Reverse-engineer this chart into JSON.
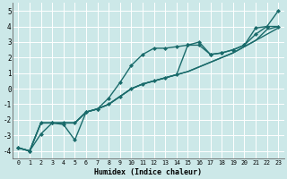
{
  "xlabel": "Humidex (Indice chaleur)",
  "ylabel": "",
  "background_color": "#cce8e8",
  "grid_color": "#ffffff",
  "line_color": "#1a6b6b",
  "xlim": [
    -0.5,
    23.5
  ],
  "ylim": [
    -4.5,
    5.5
  ],
  "xticks": [
    0,
    1,
    2,
    3,
    4,
    5,
    6,
    7,
    8,
    9,
    10,
    11,
    12,
    13,
    14,
    15,
    16,
    17,
    18,
    19,
    20,
    21,
    22,
    23
  ],
  "yticks": [
    -4,
    -3,
    -2,
    -1,
    0,
    1,
    2,
    3,
    4,
    5
  ],
  "series": [
    {
      "x": [
        0,
        1,
        2,
        3,
        4,
        5,
        6,
        7,
        8,
        9,
        10,
        11,
        12,
        13,
        14,
        15,
        16,
        17,
        18,
        19,
        20,
        21,
        22,
        23
      ],
      "y": [
        -3.8,
        -4.0,
        -2.9,
        -2.2,
        -2.3,
        -3.3,
        -1.5,
        -1.3,
        -0.6,
        0.4,
        1.5,
        2.2,
        2.6,
        2.6,
        2.7,
        2.8,
        3.0,
        2.2,
        2.3,
        2.5,
        2.8,
        3.9,
        4.0,
        5.0
      ],
      "marker": "D",
      "markersize": 2.0,
      "linewidth": 1.0
    },
    {
      "x": [
        0,
        1,
        2,
        3,
        4,
        5,
        6,
        7,
        8,
        9,
        10,
        11,
        12,
        13,
        14,
        15,
        16,
        17,
        18,
        19,
        20,
        21,
        22,
        23
      ],
      "y": [
        -3.8,
        -4.0,
        -2.2,
        -2.2,
        -2.2,
        -2.2,
        -1.5,
        -1.3,
        -1.0,
        -0.5,
        0.0,
        0.3,
        0.5,
        0.7,
        0.9,
        2.8,
        2.8,
        2.2,
        2.3,
        2.5,
        2.8,
        3.5,
        4.0,
        4.0
      ],
      "marker": "D",
      "markersize": 2.0,
      "linewidth": 1.0
    },
    {
      "x": [
        0,
        1,
        2,
        3,
        4,
        5,
        6,
        7,
        8,
        9,
        10,
        11,
        12,
        13,
        14,
        15,
        16,
        17,
        18,
        19,
        20,
        21,
        22,
        23
      ],
      "y": [
        -3.8,
        -4.0,
        -2.2,
        -2.2,
        -2.2,
        -2.2,
        -1.5,
        -1.3,
        -1.0,
        -0.5,
        0.0,
        0.3,
        0.5,
        0.7,
        0.9,
        1.1,
        1.4,
        1.7,
        2.0,
        2.3,
        2.7,
        3.1,
        3.5,
        3.9
      ],
      "marker": null,
      "markersize": 0,
      "linewidth": 1.0
    },
    {
      "x": [
        0,
        1,
        2,
        3,
        4,
        5,
        6,
        7,
        8,
        9,
        10,
        11,
        12,
        13,
        14,
        15,
        16,
        17,
        18,
        19,
        20,
        21,
        22,
        23
      ],
      "y": [
        -3.8,
        -4.0,
        -2.2,
        -2.2,
        -2.2,
        -2.2,
        -1.5,
        -1.3,
        -1.0,
        -0.5,
        0.0,
        0.3,
        0.5,
        0.7,
        0.9,
        1.1,
        1.4,
        1.7,
        2.0,
        2.3,
        2.7,
        3.1,
        3.8,
        4.0
      ],
      "marker": null,
      "markersize": 0,
      "linewidth": 1.0
    }
  ]
}
